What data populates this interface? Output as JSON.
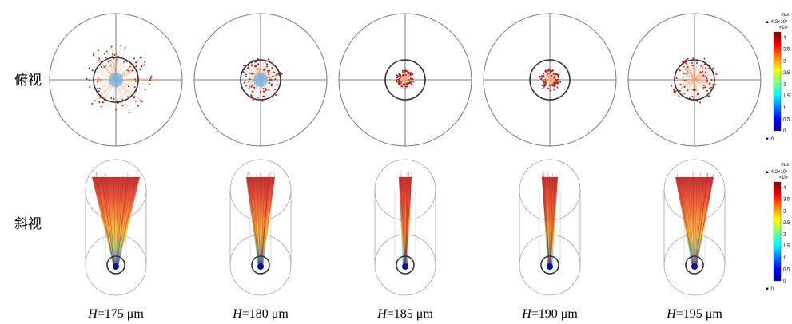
{
  "row_labels": [
    "俯视",
    "斜视"
  ],
  "panels": [
    {
      "var": "H",
      "text": "=175 μm"
    },
    {
      "var": "H",
      "text": "=180 μm"
    },
    {
      "var": "H",
      "text": "=185 μm"
    },
    {
      "var": "H",
      "text": "=190 μm"
    },
    {
      "var": "H",
      "text": "=195 μm"
    }
  ],
  "colorbars": [
    {
      "unit": "m/s",
      "max": "▲ 4.2×10⁷",
      "multiplier": "×10⁷",
      "min": "▼ 0",
      "ticks": [
        "4",
        "3.5",
        "3",
        "2.5",
        "2",
        "1.5",
        "1",
        "0.5",
        "0"
      ]
    },
    {
      "unit": "m/s",
      "max": "▲ 4.2×10⁷",
      "multiplier": "×10⁷",
      "min": "▼ 0",
      "ticks": [
        "4",
        "3.5",
        "3",
        "2.5",
        "2",
        "1.5",
        "1",
        "0.5",
        "0"
      ]
    }
  ]
}
